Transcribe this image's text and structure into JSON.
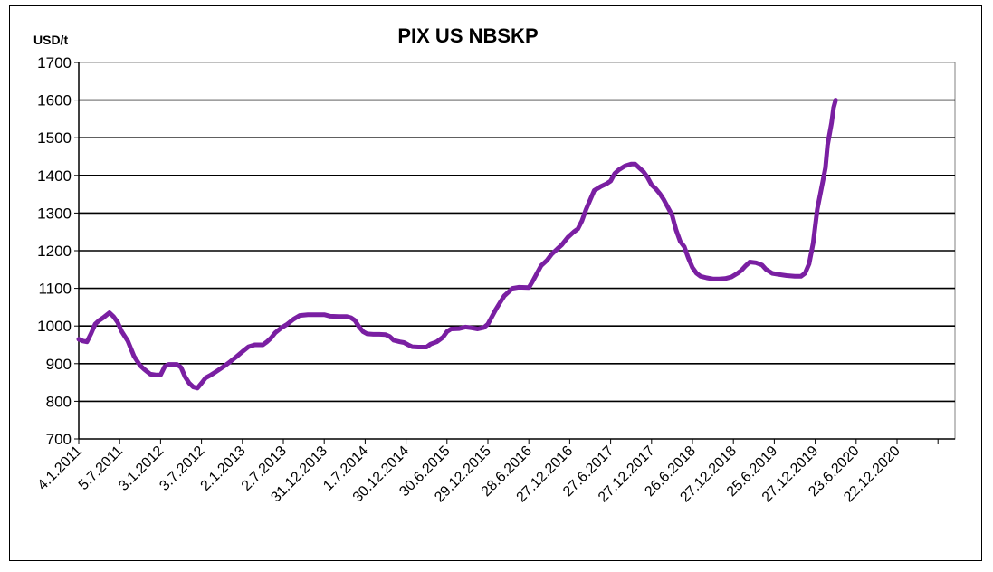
{
  "chart_data": {
    "type": "line",
    "title": "PIX US NBSKP",
    "unit_label": "USD/t",
    "xlabel": "",
    "ylabel": "",
    "ylim": [
      700,
      1700
    ],
    "yticks": [
      700,
      800,
      900,
      1000,
      1100,
      1200,
      1300,
      1400,
      1500,
      1600,
      1700
    ],
    "grid": true,
    "legend": "none",
    "x_tick_labels": [
      "4.1.2011",
      "5.7.2011",
      "3.1.2012",
      "3.7.2012",
      "2.1.2013",
      "2.7.2013",
      "31.12.2013",
      "1.7.2014",
      "30.12.2014",
      "30.6.2015",
      "29.12.2015",
      "28.6.2016",
      "27.12.2016",
      "27.6.2017",
      "27.12.2017",
      "26.6.2018",
      "27.12.2018",
      "25.6.2019",
      "27.12.2019",
      "23.6.2020",
      "22.12.2020"
    ],
    "line_color": "#7a1fa2",
    "series": [
      {
        "values": [
          [
            0,
            965
          ],
          [
            0.1,
            960
          ],
          [
            0.2,
            958
          ],
          [
            0.3,
            980
          ],
          [
            0.4,
            1005
          ],
          [
            0.5,
            1015
          ],
          [
            0.6,
            1022
          ],
          [
            0.75,
            1035
          ],
          [
            0.85,
            1025
          ],
          [
            0.95,
            1010
          ],
          [
            1.05,
            985
          ],
          [
            1.2,
            960
          ],
          [
            1.35,
            920
          ],
          [
            1.5,
            895
          ],
          [
            1.6,
            885
          ],
          [
            1.75,
            872
          ],
          [
            1.9,
            870
          ],
          [
            2.0,
            870
          ],
          [
            2.1,
            892
          ],
          [
            2.2,
            898
          ],
          [
            2.4,
            898
          ],
          [
            2.5,
            890
          ],
          [
            2.6,
            865
          ],
          [
            2.7,
            848
          ],
          [
            2.8,
            838
          ],
          [
            2.9,
            835
          ],
          [
            3.0,
            848
          ],
          [
            3.1,
            862
          ],
          [
            3.2,
            868
          ],
          [
            3.3,
            875
          ],
          [
            3.4,
            882
          ],
          [
            3.55,
            893
          ],
          [
            3.7,
            905
          ],
          [
            3.85,
            918
          ],
          [
            4.0,
            932
          ],
          [
            4.15,
            945
          ],
          [
            4.3,
            950
          ],
          [
            4.5,
            950
          ],
          [
            4.6,
            958
          ],
          [
            4.7,
            968
          ],
          [
            4.8,
            982
          ],
          [
            4.95,
            995
          ],
          [
            5.1,
            1005
          ],
          [
            5.25,
            1018
          ],
          [
            5.4,
            1028
          ],
          [
            5.6,
            1030
          ],
          [
            5.8,
            1030
          ],
          [
            6.0,
            1030
          ],
          [
            6.15,
            1026
          ],
          [
            6.35,
            1025
          ],
          [
            6.55,
            1025
          ],
          [
            6.65,
            1022
          ],
          [
            6.75,
            1015
          ],
          [
            6.85,
            998
          ],
          [
            6.95,
            985
          ],
          [
            7.05,
            979
          ],
          [
            7.2,
            978
          ],
          [
            7.35,
            978
          ],
          [
            7.5,
            977
          ],
          [
            7.6,
            972
          ],
          [
            7.7,
            962
          ],
          [
            7.85,
            958
          ],
          [
            7.95,
            956
          ],
          [
            8.05,
            950
          ],
          [
            8.15,
            945
          ],
          [
            8.3,
            944
          ],
          [
            8.5,
            944
          ],
          [
            8.6,
            952
          ],
          [
            8.75,
            958
          ],
          [
            8.9,
            970
          ],
          [
            9.0,
            985
          ],
          [
            9.1,
            992
          ],
          [
            9.3,
            993
          ],
          [
            9.45,
            997
          ],
          [
            9.6,
            995
          ],
          [
            9.75,
            992
          ],
          [
            9.9,
            996
          ],
          [
            10.0,
            1005
          ],
          [
            10.1,
            1025
          ],
          [
            10.2,
            1045
          ],
          [
            10.3,
            1063
          ],
          [
            10.4,
            1080
          ],
          [
            10.5,
            1090
          ],
          [
            10.6,
            1100
          ],
          [
            10.75,
            1103
          ],
          [
            11.0,
            1102
          ],
          [
            11.1,
            1120
          ],
          [
            11.2,
            1140
          ],
          [
            11.3,
            1160
          ],
          [
            11.45,
            1175
          ],
          [
            11.55,
            1190
          ],
          [
            11.7,
            1205
          ],
          [
            11.8,
            1215
          ],
          [
            11.95,
            1235
          ],
          [
            12.1,
            1250
          ],
          [
            12.2,
            1258
          ],
          [
            12.3,
            1280
          ],
          [
            12.4,
            1310
          ],
          [
            12.5,
            1335
          ],
          [
            12.6,
            1360
          ],
          [
            12.75,
            1370
          ],
          [
            12.9,
            1378
          ],
          [
            13.0,
            1385
          ],
          [
            13.1,
            1405
          ],
          [
            13.2,
            1415
          ],
          [
            13.35,
            1425
          ],
          [
            13.5,
            1430
          ],
          [
            13.6,
            1430
          ],
          [
            13.7,
            1420
          ],
          [
            13.8,
            1410
          ],
          [
            13.9,
            1395
          ],
          [
            14.0,
            1375
          ],
          [
            14.1,
            1365
          ],
          [
            14.2,
            1352
          ],
          [
            14.3,
            1335
          ],
          [
            14.4,
            1315
          ],
          [
            14.5,
            1295
          ],
          [
            14.6,
            1255
          ],
          [
            14.7,
            1225
          ],
          [
            14.8,
            1210
          ],
          [
            14.9,
            1180
          ],
          [
            15.0,
            1155
          ],
          [
            15.1,
            1140
          ],
          [
            15.2,
            1132
          ],
          [
            15.35,
            1128
          ],
          [
            15.5,
            1125
          ],
          [
            15.65,
            1125
          ],
          [
            15.8,
            1126
          ],
          [
            15.95,
            1130
          ],
          [
            16.1,
            1140
          ],
          [
            16.2,
            1148
          ],
          [
            16.3,
            1160
          ],
          [
            16.4,
            1170
          ],
          [
            16.55,
            1168
          ],
          [
            16.7,
            1162
          ],
          [
            16.8,
            1150
          ],
          [
            16.95,
            1140
          ],
          [
            17.1,
            1137
          ],
          [
            17.3,
            1134
          ],
          [
            17.5,
            1132
          ],
          [
            17.65,
            1132
          ],
          [
            17.75,
            1140
          ],
          [
            17.85,
            1165
          ],
          [
            17.95,
            1220
          ],
          [
            18.05,
            1310
          ],
          [
            18.15,
            1365
          ],
          [
            18.25,
            1420
          ],
          [
            18.3,
            1480
          ],
          [
            18.4,
            1540
          ],
          [
            18.45,
            1580
          ],
          [
            18.5,
            1600
          ]
        ]
      }
    ]
  }
}
